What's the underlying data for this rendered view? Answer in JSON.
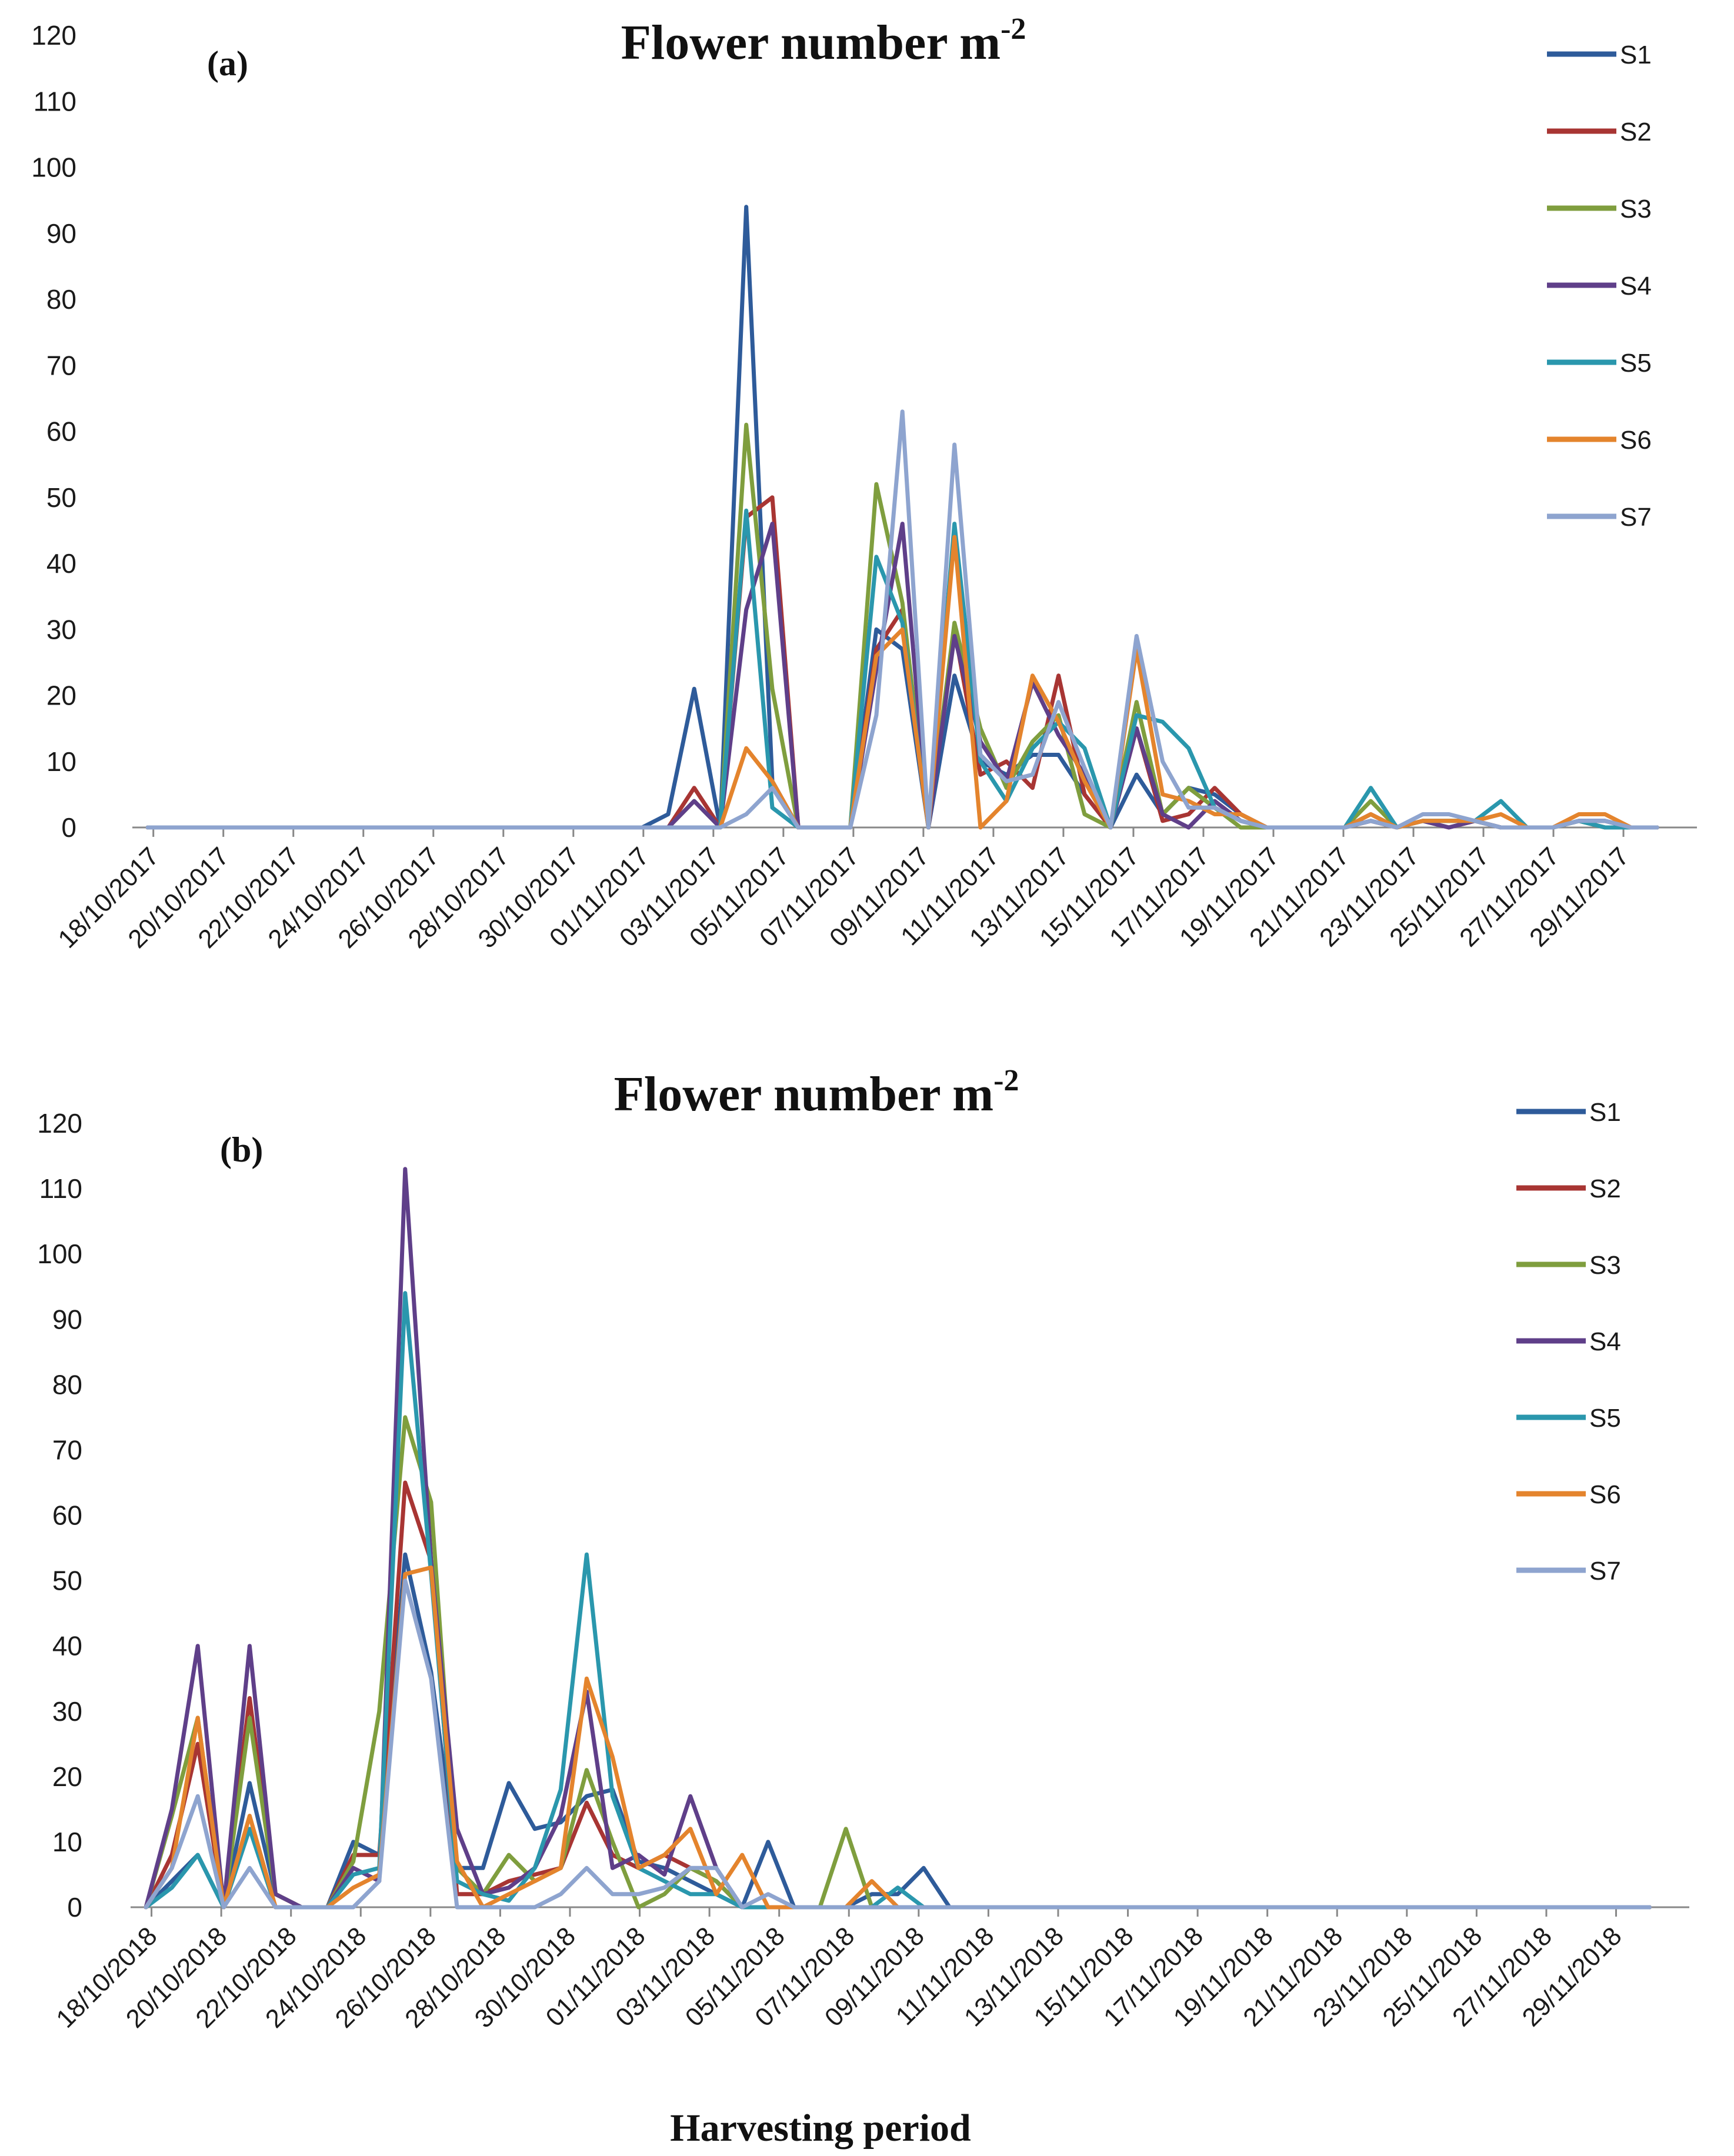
{
  "figure": {
    "xlabel": "Harvesting period"
  },
  "series_colors": {
    "S1": "#2e5b9a",
    "S2": "#a83533",
    "S3": "#7f9e3e",
    "S4": "#5f3f89",
    "S5": "#2a97ad",
    "S6": "#e4842d",
    "S7": "#8ea4cf"
  },
  "chart_data": [
    {
      "type": "line",
      "panel_label": "(a)",
      "title": "Flower number m",
      "title_superscript": "-2",
      "xlabel": "",
      "ylabel": "",
      "ylim": [
        0,
        120
      ],
      "yticks": [
        "0",
        "10",
        "20",
        "30",
        "40",
        "50",
        "60",
        "70",
        "80",
        "90",
        "100",
        "110",
        "120"
      ],
      "x_labels": [
        "18/10/2017",
        "20/10/2017",
        "22/10/2017",
        "24/10/2017",
        "26/10/2017",
        "28/10/2017",
        "30/10/2017",
        "01/11/2017",
        "03/11/2017",
        "05/11/2017",
        "07/11/2017",
        "09/11/2017",
        "11/11/2017",
        "13/11/2017",
        "15/11/2017",
        "17/11/2017",
        "19/11/2017",
        "21/11/2017",
        "23/11/2017",
        "25/11/2017",
        "27/11/2017",
        "29/11/2017"
      ],
      "legend": [
        "S1",
        "S2",
        "S3",
        "S4",
        "S5",
        "S6",
        "S7"
      ],
      "series": [
        {
          "name": "S1",
          "values": [
            0,
            0,
            0,
            0,
            0,
            0,
            0,
            0,
            0,
            0,
            0,
            0,
            0,
            0,
            0,
            0,
            0,
            0,
            0,
            0,
            2,
            21,
            0,
            94,
            7,
            0,
            0,
            0,
            30,
            27,
            0,
            23,
            10,
            8,
            11,
            11,
            5,
            0,
            8,
            2,
            6,
            5,
            2,
            0,
            0,
            0,
            0,
            1,
            0,
            1,
            1,
            1,
            0,
            0,
            0,
            1,
            1,
            0,
            0
          ]
        },
        {
          "name": "S2",
          "values": [
            0,
            0,
            0,
            0,
            0,
            0,
            0,
            0,
            0,
            0,
            0,
            0,
            0,
            0,
            0,
            0,
            0,
            0,
            0,
            0,
            0,
            6,
            0,
            47,
            50,
            0,
            0,
            0,
            27,
            33,
            0,
            30,
            8,
            10,
            6,
            23,
            5,
            0,
            15,
            1,
            2,
            6,
            2,
            0,
            0,
            0,
            0,
            1,
            0,
            1,
            0,
            1,
            0,
            0,
            0,
            1,
            0,
            0,
            0
          ]
        },
        {
          "name": "S3",
          "values": [
            0,
            0,
            0,
            0,
            0,
            0,
            0,
            0,
            0,
            0,
            0,
            0,
            0,
            0,
            0,
            0,
            0,
            0,
            0,
            0,
            0,
            4,
            0,
            61,
            21,
            0,
            0,
            0,
            52,
            34,
            0,
            31,
            15,
            6,
            13,
            17,
            2,
            0,
            19,
            2,
            6,
            3,
            0,
            0,
            0,
            0,
            0,
            4,
            0,
            1,
            1,
            1,
            0,
            0,
            0,
            1,
            0,
            0,
            0
          ]
        },
        {
          "name": "S4",
          "values": [
            0,
            0,
            0,
            0,
            0,
            0,
            0,
            0,
            0,
            0,
            0,
            0,
            0,
            0,
            0,
            0,
            0,
            0,
            0,
            0,
            0,
            4,
            0,
            33,
            46,
            0,
            0,
            0,
            24,
            46,
            0,
            29,
            13,
            7,
            22,
            14,
            8,
            0,
            15,
            2,
            0,
            4,
            1,
            0,
            0,
            0,
            0,
            2,
            0,
            1,
            0,
            1,
            0,
            0,
            0,
            1,
            1,
            0,
            0
          ]
        },
        {
          "name": "S5",
          "values": [
            0,
            0,
            0,
            0,
            0,
            0,
            0,
            0,
            0,
            0,
            0,
            0,
            0,
            0,
            0,
            0,
            0,
            0,
            0,
            0,
            0,
            0,
            0,
            48,
            3,
            0,
            0,
            0,
            41,
            31,
            0,
            46,
            10,
            4,
            12,
            16,
            12,
            0,
            17,
            16,
            12,
            3,
            1,
            0,
            0,
            0,
            0,
            6,
            0,
            1,
            1,
            1,
            4,
            0,
            0,
            1,
            0,
            0,
            0
          ]
        },
        {
          "name": "S6",
          "values": [
            0,
            0,
            0,
            0,
            0,
            0,
            0,
            0,
            0,
            0,
            0,
            0,
            0,
            0,
            0,
            0,
            0,
            0,
            0,
            0,
            0,
            0,
            0,
            12,
            7,
            0,
            0,
            0,
            26,
            30,
            0,
            44,
            0,
            4,
            23,
            16,
            7,
            0,
            27,
            5,
            4,
            2,
            2,
            0,
            0,
            0,
            0,
            2,
            0,
            1,
            1,
            1,
            2,
            0,
            0,
            2,
            2,
            0,
            0
          ]
        },
        {
          "name": "S7",
          "values": [
            0,
            0,
            0,
            0,
            0,
            0,
            0,
            0,
            0,
            0,
            0,
            0,
            0,
            0,
            0,
            0,
            0,
            0,
            0,
            0,
            0,
            0,
            0,
            2,
            6,
            0,
            0,
            0,
            17,
            63,
            0,
            58,
            11,
            7,
            8,
            19,
            9,
            0,
            29,
            10,
            3,
            3,
            1,
            0,
            0,
            0,
            0,
            1,
            0,
            2,
            2,
            1,
            0,
            0,
            0,
            1,
            1,
            0,
            0
          ]
        }
      ]
    },
    {
      "type": "line",
      "panel_label": "(b)",
      "title": "Flower number m",
      "title_superscript": "-2",
      "xlabel": "Harvesting period",
      "ylabel": "",
      "ylim": [
        0,
        120
      ],
      "yticks": [
        "0",
        "10",
        "20",
        "30",
        "40",
        "50",
        "60",
        "70",
        "80",
        "90",
        "100",
        "110",
        "120"
      ],
      "x_labels": [
        "18/10/2018",
        "20/10/2018",
        "22/10/2018",
        "24/10/2018",
        "26/10/2018",
        "28/10/2018",
        "30/10/2018",
        "01/11/2018",
        "03/11/2018",
        "05/11/2018",
        "07/11/2018",
        "09/11/2018",
        "11/11/2018",
        "13/11/2018",
        "15/11/2018",
        "17/11/2018",
        "19/11/2018",
        "21/11/2018",
        "23/11/2018",
        "25/11/2018",
        "27/11/2018",
        "29/11/2018"
      ],
      "legend": [
        "S1",
        "S2",
        "S3",
        "S4",
        "S5",
        "S6",
        "S7"
      ],
      "series": [
        {
          "name": "S1",
          "values": [
            0,
            4,
            8,
            0,
            19,
            2,
            0,
            0,
            10,
            8,
            54,
            36,
            6,
            6,
            19,
            12,
            13,
            17,
            18,
            7,
            6,
            4,
            2,
            0,
            10,
            0,
            0,
            0,
            2,
            2,
            6,
            0,
            0,
            0,
            0,
            0,
            0,
            0,
            0,
            0,
            0,
            0,
            0,
            0,
            0,
            0,
            0,
            0,
            0,
            0,
            0,
            0,
            0,
            0,
            0,
            0,
            0,
            0,
            0
          ]
        },
        {
          "name": "S2",
          "values": [
            0,
            8,
            25,
            0,
            32,
            2,
            0,
            0,
            8,
            8,
            65,
            53,
            2,
            2,
            4,
            5,
            6,
            16,
            8,
            6,
            8,
            6,
            4,
            0,
            0,
            0,
            0,
            0,
            0,
            0,
            0,
            0,
            0,
            0,
            0,
            0,
            0,
            0,
            0,
            0,
            0,
            0,
            0,
            0,
            0,
            0,
            0,
            0,
            0,
            0,
            0,
            0,
            0,
            0,
            0,
            0,
            0,
            0,
            0
          ]
        },
        {
          "name": "S3",
          "values": [
            0,
            14,
            29,
            0,
            29,
            2,
            0,
            0,
            7,
            30,
            75,
            62,
            6,
            2,
            8,
            4,
            6,
            21,
            10,
            0,
            2,
            6,
            4,
            0,
            0,
            0,
            0,
            12,
            0,
            0,
            0,
            0,
            0,
            0,
            0,
            0,
            0,
            0,
            0,
            0,
            0,
            0,
            0,
            0,
            0,
            0,
            0,
            0,
            0,
            0,
            0,
            0,
            0,
            0,
            0,
            0,
            0,
            0,
            0
          ]
        },
        {
          "name": "S4",
          "values": [
            0,
            15,
            40,
            0,
            40,
            2,
            0,
            0,
            6,
            4,
            113,
            53,
            12,
            2,
            3,
            6,
            14,
            33,
            6,
            8,
            5,
            17,
            6,
            0,
            0,
            0,
            0,
            0,
            0,
            0,
            0,
            0,
            0,
            0,
            0,
            0,
            0,
            0,
            0,
            0,
            0,
            0,
            0,
            0,
            0,
            0,
            0,
            0,
            0,
            0,
            0,
            0,
            0,
            0,
            0,
            0,
            0,
            0,
            0
          ]
        },
        {
          "name": "S5",
          "values": [
            0,
            3,
            8,
            0,
            12,
            0,
            0,
            0,
            5,
            6,
            94,
            51,
            4,
            2,
            1,
            6,
            18,
            54,
            17,
            6,
            4,
            2,
            2,
            0,
            0,
            0,
            0,
            0,
            0,
            3,
            0,
            0,
            0,
            0,
            0,
            0,
            0,
            0,
            0,
            0,
            0,
            0,
            0,
            0,
            0,
            0,
            0,
            0,
            0,
            0,
            0,
            0,
            0,
            0,
            0,
            0,
            0,
            0,
            0
          ]
        },
        {
          "name": "S6",
          "values": [
            0,
            6,
            29,
            0,
            14,
            0,
            0,
            0,
            3,
            5,
            51,
            52,
            7,
            0,
            2,
            4,
            6,
            35,
            23,
            6,
            8,
            12,
            2,
            8,
            0,
            0,
            0,
            0,
            4,
            0,
            0,
            0,
            0,
            0,
            0,
            0,
            0,
            0,
            0,
            0,
            0,
            0,
            0,
            0,
            0,
            0,
            0,
            0,
            0,
            0,
            0,
            0,
            0,
            0,
            0,
            0,
            0,
            0,
            0
          ]
        },
        {
          "name": "S7",
          "values": [
            0,
            6,
            17,
            0,
            6,
            0,
            0,
            0,
            0,
            4,
            50,
            35,
            0,
            0,
            0,
            0,
            2,
            6,
            2,
            2,
            3,
            6,
            6,
            0,
            2,
            0,
            0,
            0,
            0,
            0,
            0,
            0,
            0,
            0,
            0,
            0,
            0,
            0,
            0,
            0,
            0,
            0,
            0,
            0,
            0,
            0,
            0,
            0,
            0,
            0,
            0,
            0,
            0,
            0,
            0,
            0,
            0,
            0,
            0
          ]
        }
      ]
    }
  ]
}
